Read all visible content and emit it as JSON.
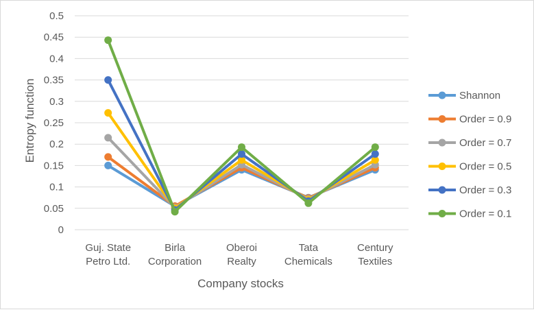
{
  "chart_data": {
    "type": "line",
    "title": "",
    "xlabel": "Company stocks",
    "ylabel": "Entropy function",
    "ylim": [
      0,
      0.5
    ],
    "ytick_step": 0.05,
    "grid": true,
    "legend_position": "right",
    "categories": [
      [
        "Guj. State",
        "Petro Ltd."
      ],
      [
        "Birla",
        "Corporation"
      ],
      [
        "Oberoi",
        "Realty"
      ],
      [
        "Tata",
        "Chemicals"
      ],
      [
        "Century",
        "Textiles"
      ]
    ],
    "series": [
      {
        "name": "Shannon",
        "color": "#5B9BD5",
        "values": [
          0.15,
          0.055,
          0.14,
          0.075,
          0.14
        ]
      },
      {
        "name": "Order = 0.9",
        "color": "#ED7D31",
        "values": [
          0.17,
          0.055,
          0.145,
          0.074,
          0.145
        ]
      },
      {
        "name": "Order = 0.7",
        "color": "#A5A5A5",
        "values": [
          0.215,
          0.052,
          0.152,
          0.072,
          0.152
        ]
      },
      {
        "name": "Order = 0.5",
        "color": "#FFC000",
        "values": [
          0.273,
          0.05,
          0.163,
          0.07,
          0.163
        ]
      },
      {
        "name": "Order = 0.3",
        "color": "#4472C4",
        "values": [
          0.35,
          0.046,
          0.177,
          0.067,
          0.177
        ]
      },
      {
        "name": "Order = 0.1",
        "color": "#70AD47",
        "values": [
          0.443,
          0.042,
          0.193,
          0.062,
          0.193
        ]
      }
    ]
  }
}
